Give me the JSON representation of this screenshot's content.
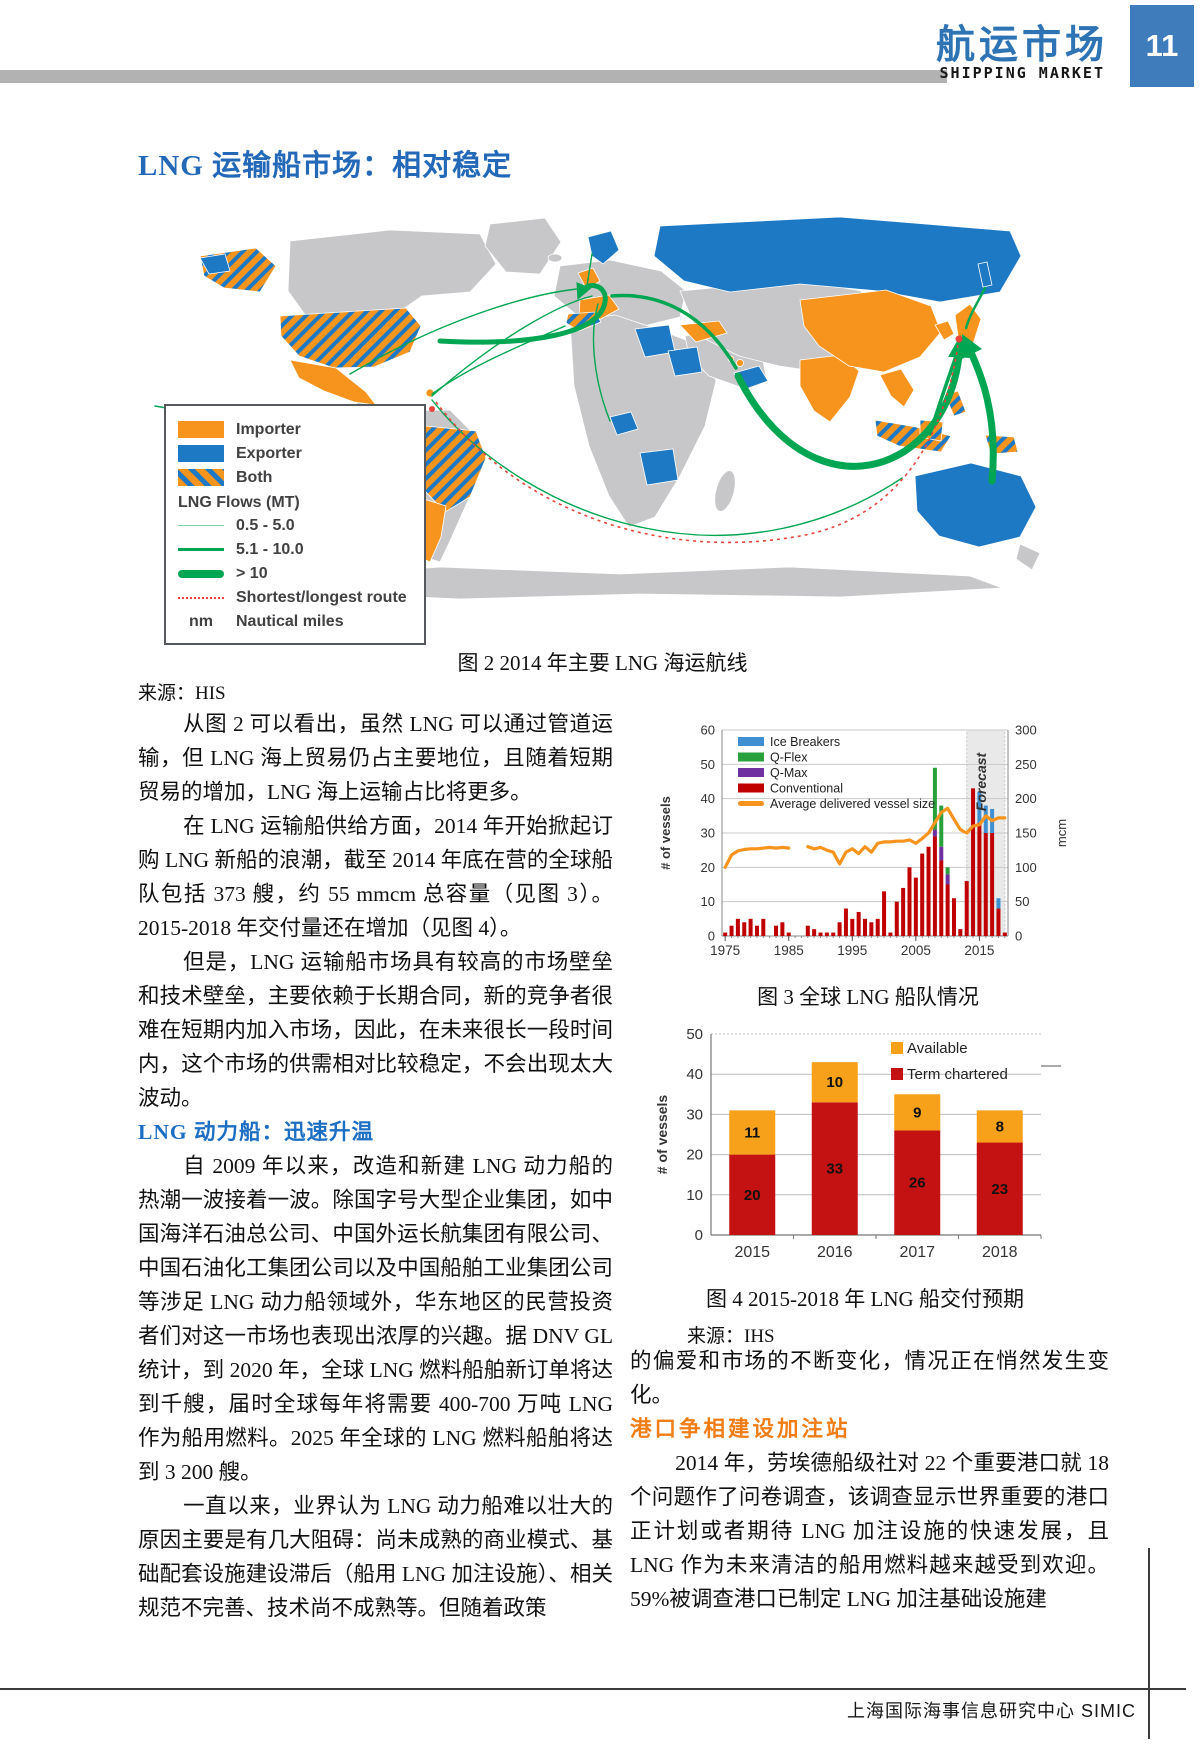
{
  "header": {
    "title_zh": "航运市场",
    "title_en": "SHIPPING MARKET",
    "page_number": "11"
  },
  "section1": {
    "title": "LNG 运输船市场：相对稳定"
  },
  "section2": {
    "title": "LNG 动力船：迅速升温"
  },
  "section3": {
    "title": "港口争相建设加注站"
  },
  "figure2": {
    "caption": "图 2 2014 年主要 LNG 海运航线",
    "source": "来源：HIS",
    "legend": {
      "importer": "Importer",
      "exporter": "Exporter",
      "both": "Both",
      "flows_title": "LNG Flows (MT)",
      "flow1": "0.5 - 5.0",
      "flow2": "5.1 - 10.0",
      "flow3": "> 10",
      "route": "Shortest/longest route",
      "nm_abbr": "nm",
      "nm_label": "Nautical miles"
    }
  },
  "article": {
    "p1": "从图 2 可以看出，虽然 LNG 可以通过管道运输，但 LNG 海上贸易仍占主要地位，且随着短期贸易的增加，LNG 海上运输占比将更多。",
    "p2": "在 LNG 运输船供给方面，2014 年开始掀起订购 LNG 新船的浪潮，截至 2014 年底在营的全球船队包括 373 艘，约 55 mmcm 总容量（见图 3）。2015-2018 年交付量还在增加（见图 4）。",
    "p3": "但是，LNG 运输船市场具有较高的市场壁垒和技术壁垒，主要依赖于长期合同，新的竞争者很难在短期内加入市场，因此，在未来很长一段时间内，这个市场的供需相对比较稳定，不会出现太大波动。",
    "p4": "自 2009 年以来，改造和新建 LNG 动力船的热潮一波接着一波。除国字号大型企业集团，如中国海洋石油总公司、中国外运长航集团有限公司、中国石油化工集团公司以及中国船舶工业集团公司等涉足 LNG 动力船领域外，华东地区的民营投资者们对这一市场也表现出浓厚的兴趣。据 DNV GL 统计，到 2020 年，全球 LNG 燃料船舶新订单将达到千艘，届时全球每年将需要 400-700 万吨 LNG 作为船用燃料。2025 年全球的 LNG 燃料船舶将达到 3 200 艘。",
    "p5": "一直以来，业界认为 LNG 动力船难以壮大的原因主要是有几大阻碍：尚未成熟的商业模式、基础配套设施建设滞后（船用 LNG 加注设施）、相关规范不完善、技术尚不成熟等。但随着政策",
    "r1": "的偏爱和市场的不断变化，情况正在悄然发生变化。",
    "r2": "2014 年，劳埃德船级社对 22 个重要港口就 18 个问题作了问卷调查，该调查显示世界重要的港口正计划或者期待 LNG 加注设施的快速发展，且 LNG 作为未来清洁的船用燃料越来越受到欢迎。59%被调查港口已制定 LNG 加注基础设施建"
  },
  "footer": {
    "text": "上海国际海事信息研究中心  SIMIC"
  },
  "colors": {
    "accent_blue": "#2e74b5",
    "heading_blue": "#1d6fc4",
    "heading_orange": "#f07d16",
    "map_importer": "#f7941e",
    "map_exporter": "#1d79c4",
    "map_flow_green": "#00a651",
    "map_route_red": "#e8443a",
    "map_land_gray": "#c7c7c9",
    "bar_red": "#c00000",
    "bar_orange": "#f7a11a",
    "bar_blue": "#3f8fd2",
    "bar_green": "#28a03c",
    "bar_purple": "#7030a0",
    "line_orange": "#f7941e"
  },
  "chart_data": [
    {
      "type": "bar",
      "subtype": "stacked-bar-with-line",
      "caption": "图 3 全球 LNG 船队情况",
      "ylabel_left": "# of vessels",
      "ylabel_right": "mcm",
      "ylim_left": [
        0,
        60
      ],
      "ylim_right": [
        0,
        300
      ],
      "yticks_left": [
        0,
        10,
        20,
        30,
        40,
        50,
        60
      ],
      "yticks_right": [
        0,
        50,
        100,
        150,
        200,
        250,
        300
      ],
      "x_start_year": 1975,
      "xticks": [
        1975,
        1985,
        1995,
        2005,
        2015
      ],
      "forecast": {
        "label": "Forecast",
        "from": 2013.5,
        "to": 2019.5
      },
      "legend_order": [
        "Ice Breakers",
        "Q-Flex",
        "Q-Max",
        "Conventional",
        "Average delivered vessel size"
      ],
      "stack_order": [
        "Conventional",
        "Q-Max",
        "Q-Flex",
        "Ice Breakers"
      ],
      "series": {
        "Ice Breakers": {
          "color": "#3f8fd2",
          "kind": "bar",
          "values": [
            0,
            0,
            0,
            0,
            0,
            0,
            0,
            0,
            0,
            0,
            0,
            0,
            0,
            0,
            0,
            0,
            0,
            0,
            0,
            0,
            0,
            0,
            0,
            0,
            0,
            0,
            0,
            0,
            0,
            0,
            0,
            0,
            0,
            0,
            0,
            0,
            0,
            0,
            0,
            0,
            9,
            8,
            7,
            3,
            0
          ]
        },
        "Q-Flex": {
          "color": "#28a03c",
          "kind": "bar",
          "values": [
            0,
            0,
            0,
            0,
            0,
            0,
            0,
            0,
            0,
            0,
            0,
            0,
            0,
            0,
            0,
            0,
            0,
            0,
            0,
            0,
            0,
            0,
            0,
            0,
            0,
            0,
            0,
            0,
            0,
            0,
            0,
            0,
            0,
            18,
            12,
            2,
            0,
            0,
            0,
            0,
            0,
            0,
            0,
            0,
            0
          ]
        },
        "Q-Max": {
          "color": "#7030a0",
          "kind": "bar",
          "values": [
            0,
            0,
            0,
            0,
            0,
            0,
            0,
            0,
            0,
            0,
            0,
            0,
            0,
            0,
            0,
            0,
            0,
            0,
            0,
            0,
            0,
            0,
            0,
            0,
            0,
            0,
            0,
            0,
            0,
            0,
            0,
            0,
            0,
            2,
            4,
            3,
            0,
            0,
            0,
            0,
            0,
            0,
            0,
            0,
            0
          ]
        },
        "Conventional": {
          "color": "#c00000",
          "kind": "bar",
          "values": [
            1,
            3,
            5,
            4,
            5,
            3,
            5,
            0,
            3,
            4,
            1,
            0,
            0,
            3,
            2,
            1,
            1,
            1,
            4,
            8,
            5,
            7,
            5,
            4,
            5,
            13,
            1,
            10,
            14,
            20,
            17,
            24,
            26,
            29,
            22,
            15,
            11,
            2,
            16,
            43,
            33,
            30,
            30,
            8,
            1
          ]
        },
        "Average delivered vessel size": {
          "color": "#f7941e",
          "kind": "line",
          "axis": "right",
          "values": [
            100,
            118,
            124,
            126,
            127,
            127,
            128,
            129,
            128,
            129,
            128,
            null,
            null,
            130,
            127,
            129,
            125,
            122,
            105,
            122,
            127,
            120,
            130,
            122,
            135,
            137,
            137,
            138,
            138,
            140,
            135,
            142,
            150,
            165,
            180,
            186,
            170,
            155,
            150,
            160,
            162,
            175,
            168,
            172,
            172
          ]
        }
      }
    },
    {
      "type": "bar",
      "subtype": "stacked-bar",
      "caption": "图 4 2015-2018 年 LNG 船交付预期",
      "source": "来源：IHS",
      "ylabel": "# of vessels",
      "ylim": [
        0,
        50
      ],
      "yticks": [
        0,
        10,
        20,
        30,
        40,
        50
      ],
      "categories": [
        "2015",
        "2016",
        "2017",
        "2018"
      ],
      "series": [
        {
          "name": "Available",
          "color": "#f7a11a",
          "values": [
            11,
            10,
            9,
            8
          ]
        },
        {
          "name": "Term chartered",
          "color": "#c41212",
          "values": [
            20,
            33,
            26,
            23
          ]
        }
      ],
      "legend_position": "top-right",
      "value_labels": true
    }
  ]
}
